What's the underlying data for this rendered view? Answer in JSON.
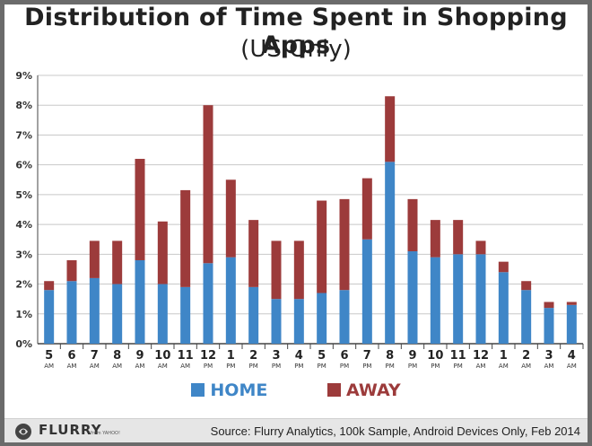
{
  "title": "Distribution of Time Spent in Shopping Apps",
  "subtitle": "(US Only)",
  "legend": {
    "home": "HOME",
    "away": "AWAY"
  },
  "colors": {
    "home": "#3f86c7",
    "away": "#9c3b3b",
    "grid": "#c8c8c8",
    "axis": "#444444"
  },
  "footer": {
    "logo_text": "FLURRY",
    "logo_sub": "from YAHOO!",
    "source": "Source: Flurry Analytics, 100k Sample, Android Devices Only, Feb 2014"
  },
  "chart_data": {
    "type": "bar",
    "stacked": true,
    "title": "Distribution of Time Spent in Shopping Apps",
    "subtitle": "(US Only)",
    "xlabel": "",
    "ylabel": "",
    "ylim": [
      0,
      9
    ],
    "y_ticks": [
      "0%",
      "1%",
      "2%",
      "3%",
      "4%",
      "5%",
      "6%",
      "7%",
      "8%",
      "9%"
    ],
    "grid": true,
    "legend_position": "bottom",
    "categories": [
      {
        "hour": "5",
        "period": "AM"
      },
      {
        "hour": "6",
        "period": "AM"
      },
      {
        "hour": "7",
        "period": "AM"
      },
      {
        "hour": "8",
        "period": "AM"
      },
      {
        "hour": "9",
        "period": "AM"
      },
      {
        "hour": "10",
        "period": "AM"
      },
      {
        "hour": "11",
        "period": "AM"
      },
      {
        "hour": "12",
        "period": "PM"
      },
      {
        "hour": "1",
        "period": "PM"
      },
      {
        "hour": "2",
        "period": "PM"
      },
      {
        "hour": "3",
        "period": "PM"
      },
      {
        "hour": "4",
        "period": "PM"
      },
      {
        "hour": "5",
        "period": "PM"
      },
      {
        "hour": "6",
        "period": "PM"
      },
      {
        "hour": "7",
        "period": "PM"
      },
      {
        "hour": "8",
        "period": "PM"
      },
      {
        "hour": "9",
        "period": "PM"
      },
      {
        "hour": "10",
        "period": "PM"
      },
      {
        "hour": "11",
        "period": "PM"
      },
      {
        "hour": "12",
        "period": "AM"
      },
      {
        "hour": "1",
        "period": "AM"
      },
      {
        "hour": "2",
        "period": "AM"
      },
      {
        "hour": "3",
        "period": "AM"
      },
      {
        "hour": "4",
        "period": "AM"
      }
    ],
    "series": [
      {
        "name": "HOME",
        "color": "#3f86c7",
        "values": [
          1.8,
          2.1,
          2.2,
          2.0,
          2.8,
          2.0,
          1.9,
          2.7,
          2.9,
          1.9,
          1.5,
          1.5,
          1.7,
          1.8,
          3.5,
          6.1,
          3.1,
          2.9,
          3.0,
          3.0,
          2.4,
          1.8,
          1.2,
          1.3
        ]
      },
      {
        "name": "AWAY",
        "color": "#9c3b3b",
        "values": [
          0.3,
          0.7,
          1.25,
          1.45,
          3.4,
          2.1,
          3.25,
          5.3,
          2.6,
          2.25,
          1.95,
          1.95,
          3.1,
          3.05,
          2.05,
          2.2,
          1.75,
          1.25,
          1.15,
          0.45,
          0.35,
          0.3,
          0.2,
          0.1
        ]
      }
    ]
  }
}
